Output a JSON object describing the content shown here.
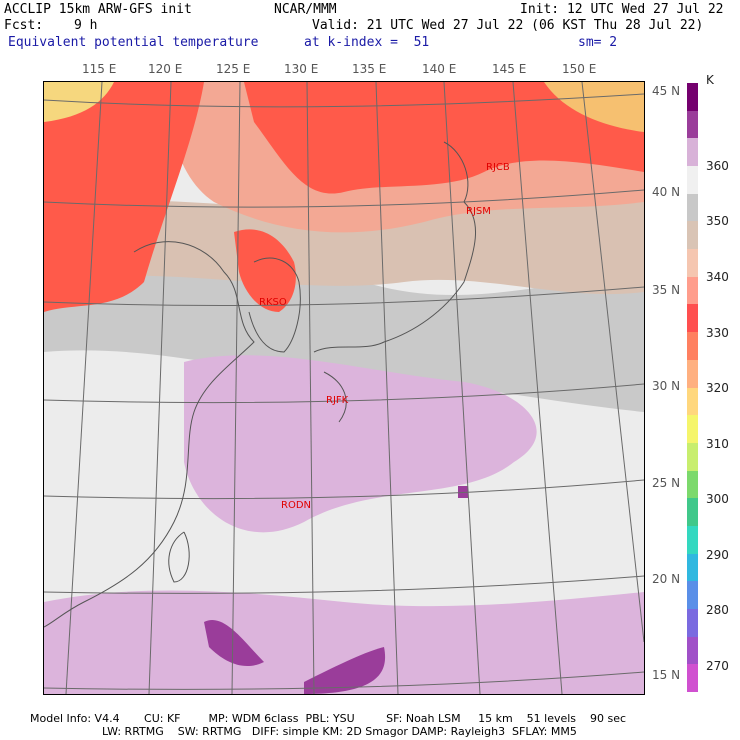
{
  "header": {
    "model": "ACCLIP 15km ARW-GFS init",
    "center": "NCAR/MMM",
    "init": "Init: 12 UTC Wed 27 Jul 22",
    "fcst_label": "Fcst:",
    "fcst_value": "9 h",
    "valid": "Valid: 21 UTC Wed 27 Jul 22 (06 KST Thu 28 Jul 22)",
    "field": "Equivalent potential temperature",
    "level": "at k-index =  51",
    "smooth": "sm= 2"
  },
  "lon_labels": [
    "115 E",
    "120 E",
    "125 E",
    "130 E",
    "135 E",
    "140 E",
    "145 E",
    "150 E"
  ],
  "lat_labels": [
    "45 N",
    "40 N",
    "35 N",
    "30 N",
    "25 N",
    "20 N",
    "15 N"
  ],
  "colorbar": {
    "unit": "K",
    "labels": [
      "360",
      "350",
      "340",
      "330",
      "320",
      "310",
      "300",
      "290",
      "280",
      "270"
    ],
    "colors": [
      "#74006e",
      "#9a3d9a",
      "#d8b2d8",
      "#f0f0f0",
      "#c8c8c8",
      "#d9c4b5",
      "#f5c6b0",
      "#ff9d8c",
      "#ff4f4f",
      "#ff8060",
      "#ffb080",
      "#ffd77d",
      "#f5f56b",
      "#c8ee6e",
      "#7cd96c",
      "#40c88a",
      "#33d8c0",
      "#30b8e0",
      "#5a8fe8",
      "#7a6ae0",
      "#a050c8",
      "#d050d0"
    ]
  },
  "stations": [
    {
      "id": "RJCB",
      "name": "RJCB"
    },
    {
      "id": "RJSM",
      "name": "RJSM"
    },
    {
      "id": "RKSO",
      "name": "RKSO"
    },
    {
      "id": "RJFK",
      "name": "RJFK"
    },
    {
      "id": "RODN",
      "name": "RODN"
    }
  ],
  "footer": {
    "line1": "Model Info: V4.4       CU: KF        MP: WDM 6class  PBL: YSU         SF: Noah LSM     15 km    51 levels    90 sec",
    "line2": "LW: RRTMG    SW: RRTMG   DIFF: simple KM: 2D Smagor DAMP: Rayleigh3  SFLAY: MM5"
  }
}
